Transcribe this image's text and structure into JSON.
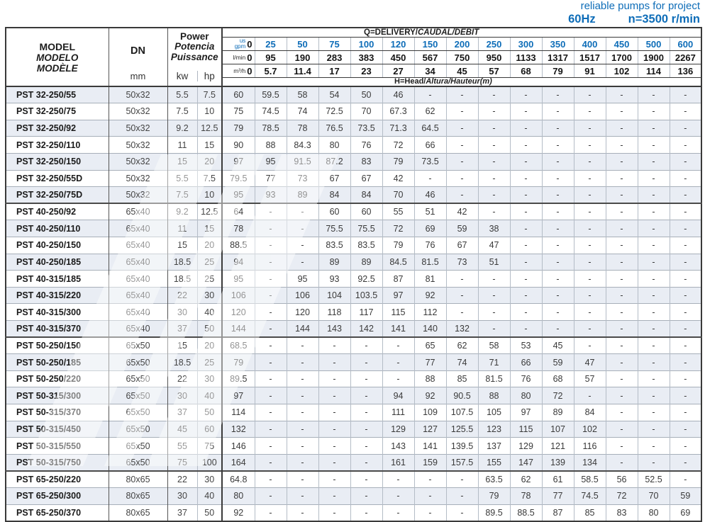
{
  "header": {
    "tagline": "reliable pumps for project",
    "frequency": "60Hz",
    "speed": "n=3500 r/min"
  },
  "table": {
    "model_header": {
      "en": "MODEL",
      "es": "MODELO",
      "fr": "MODÈLE"
    },
    "dn_header": {
      "label": "DN",
      "unit": "mm"
    },
    "power_header": {
      "en": "Power",
      "es": "Potencia",
      "fr": "Puissance",
      "units": [
        "kw",
        "hp"
      ]
    },
    "delivery_header": {
      "prefix": "Q=DELIVERY/",
      "italic": "CAUDAL/DÉBIT"
    },
    "head_label": {
      "prefix": "H=Head/",
      "italic": "Altura/Hauteur(m)"
    },
    "flow_rows": [
      {
        "unit": "us gpm",
        "values": [
          "0",
          "25",
          "50",
          "75",
          "100",
          "120",
          "150",
          "200",
          "250",
          "300",
          "350",
          "400",
          "450",
          "500",
          "600"
        ]
      },
      {
        "unit": "l/min",
        "values": [
          "0",
          "95",
          "190",
          "283",
          "383",
          "450",
          "567",
          "750",
          "950",
          "1133",
          "1317",
          "1517",
          "1700",
          "1900",
          "2267"
        ]
      },
      {
        "unit": "m³/h",
        "values": [
          "0",
          "5.7",
          "11.4",
          "17",
          "23",
          "27",
          "34",
          "45",
          "57",
          "68",
          "79",
          "91",
          "102",
          "114",
          "136"
        ]
      }
    ],
    "rows": [
      {
        "model": "PST 32-250/55",
        "dn": "50x32",
        "kw": "5.5",
        "hp": "7.5",
        "heads": [
          "60",
          "59.5",
          "58",
          "54",
          "50",
          "46",
          "-",
          "-",
          "-",
          "-",
          "-",
          "-",
          "-",
          "-",
          "-"
        ]
      },
      {
        "model": "PST 32-250/75",
        "dn": "50x32",
        "kw": "7.5",
        "hp": "10",
        "heads": [
          "75",
          "74.5",
          "74",
          "72.5",
          "70",
          "67.3",
          "62",
          "-",
          "-",
          "-",
          "-",
          "-",
          "-",
          "-",
          "-"
        ]
      },
      {
        "model": "PST 32-250/92",
        "dn": "50x32",
        "kw": "9.2",
        "hp": "12.5",
        "heads": [
          "79",
          "78.5",
          "78",
          "76.5",
          "73.5",
          "71.3",
          "64.5",
          "-",
          "-",
          "-",
          "-",
          "-",
          "-",
          "-",
          "-"
        ]
      },
      {
        "model": "PST 32-250/110",
        "dn": "50x32",
        "kw": "11",
        "hp": "15",
        "heads": [
          "90",
          "88",
          "84.3",
          "80",
          "76",
          "72",
          "66",
          "-",
          "-",
          "-",
          "-",
          "-",
          "-",
          "-",
          "-"
        ]
      },
      {
        "model": "PST 32-250/150",
        "dn": "50x32",
        "kw": "15",
        "hp": "20",
        "heads": [
          "97",
          "95",
          "91.5",
          "87.2",
          "83",
          "79",
          "73.5",
          "-",
          "-",
          "-",
          "-",
          "-",
          "-",
          "-",
          "-"
        ]
      },
      {
        "model": "PST 32-250/55D",
        "dn": "50x32",
        "kw": "5.5",
        "hp": "7.5",
        "heads": [
          "79.5",
          "77",
          "73",
          "67",
          "67",
          "42",
          "-",
          "-",
          "-",
          "-",
          "-",
          "-",
          "-",
          "-",
          "-"
        ]
      },
      {
        "model": "PST 32-250/75D",
        "dn": "50x32",
        "kw": "7.5",
        "hp": "10",
        "heads": [
          "95",
          "93",
          "89",
          "84",
          "84",
          "70",
          "46",
          "-",
          "-",
          "-",
          "-",
          "-",
          "-",
          "-",
          "-"
        ]
      },
      {
        "model": "PST 40-250/92",
        "dn": "65x40",
        "kw": "9.2",
        "hp": "12.5",
        "heads": [
          "64",
          "-",
          "-",
          "60",
          "60",
          "55",
          "51",
          "42",
          "-",
          "-",
          "-",
          "-",
          "-",
          "-",
          "-"
        ]
      },
      {
        "model": "PST 40-250/110",
        "dn": "65x40",
        "kw": "11",
        "hp": "15",
        "heads": [
          "78",
          "-",
          "-",
          "75.5",
          "75.5",
          "72",
          "69",
          "59",
          "38",
          "-",
          "-",
          "-",
          "-",
          "-",
          "-"
        ]
      },
      {
        "model": "PST 40-250/150",
        "dn": "65x40",
        "kw": "15",
        "hp": "20",
        "heads": [
          "88.5",
          "-",
          "-",
          "83.5",
          "83.5",
          "79",
          "76",
          "67",
          "47",
          "-",
          "-",
          "-",
          "-",
          "-",
          "-"
        ]
      },
      {
        "model": "PST 40-250/185",
        "dn": "65x40",
        "kw": "18.5",
        "hp": "25",
        "heads": [
          "94",
          "-",
          "-",
          "89",
          "89",
          "84.5",
          "81.5",
          "73",
          "51",
          "-",
          "-",
          "-",
          "-",
          "-",
          "-"
        ]
      },
      {
        "model": "PST 40-315/185",
        "dn": "65x40",
        "kw": "18.5",
        "hp": "25",
        "heads": [
          "95",
          "-",
          "95",
          "93",
          "92.5",
          "87",
          "81",
          "-",
          "-",
          "-",
          "-",
          "-",
          "-",
          "-",
          "-"
        ]
      },
      {
        "model": "PST 40-315/220",
        "dn": "65x40",
        "kw": "22",
        "hp": "30",
        "heads": [
          "106",
          "-",
          "106",
          "104",
          "103.5",
          "97",
          "92",
          "-",
          "-",
          "-",
          "-",
          "-",
          "-",
          "-",
          "-"
        ]
      },
      {
        "model": "PST 40-315/300",
        "dn": "65x40",
        "kw": "30",
        "hp": "40",
        "heads": [
          "120",
          "-",
          "120",
          "118",
          "117",
          "115",
          "112",
          "-",
          "-",
          "-",
          "-",
          "-",
          "-",
          "-",
          "-"
        ]
      },
      {
        "model": "PST 40-315/370",
        "dn": "65x40",
        "kw": "37",
        "hp": "50",
        "heads": [
          "144",
          "-",
          "144",
          "143",
          "142",
          "141",
          "140",
          "132",
          "-",
          "-",
          "-",
          "-",
          "-",
          "-",
          "-"
        ]
      },
      {
        "model": "PST 50-250/150",
        "dn": "65x50",
        "kw": "15",
        "hp": "20",
        "heads": [
          "68.5",
          "-",
          "-",
          "-",
          "-",
          "-",
          "65",
          "62",
          "58",
          "53",
          "45",
          "-",
          "-",
          "-",
          "-"
        ]
      },
      {
        "model": "PST 50-250/185",
        "dn": "65x50",
        "kw": "18.5",
        "hp": "25",
        "heads": [
          "79",
          "-",
          "-",
          "-",
          "-",
          "-",
          "77",
          "74",
          "71",
          "66",
          "59",
          "47",
          "-",
          "-",
          "-"
        ]
      },
      {
        "model": "PST 50-250/220",
        "dn": "65x50",
        "kw": "22",
        "hp": "30",
        "heads": [
          "89.5",
          "-",
          "-",
          "-",
          "-",
          "-",
          "88",
          "85",
          "81.5",
          "76",
          "68",
          "57",
          "-",
          "-",
          "-"
        ]
      },
      {
        "model": "PST 50-315/300",
        "dn": "65x50",
        "kw": "30",
        "hp": "40",
        "heads": [
          "97",
          "-",
          "-",
          "-",
          "-",
          "94",
          "92",
          "90.5",
          "88",
          "80",
          "72",
          "-",
          "-",
          "-",
          "-"
        ]
      },
      {
        "model": "PST 50-315/370",
        "dn": "65x50",
        "kw": "37",
        "hp": "50",
        "heads": [
          "114",
          "-",
          "-",
          "-",
          "-",
          "111",
          "109",
          "107.5",
          "105",
          "97",
          "89",
          "84",
          "-",
          "-",
          "-"
        ]
      },
      {
        "model": "PST 50-315/450",
        "dn": "65x50",
        "kw": "45",
        "hp": "60",
        "heads": [
          "132",
          "-",
          "-",
          "-",
          "-",
          "129",
          "127",
          "125.5",
          "123",
          "115",
          "107",
          "102",
          "-",
          "-",
          "-"
        ]
      },
      {
        "model": "PST 50-315/550",
        "dn": "65x50",
        "kw": "55",
        "hp": "75",
        "heads": [
          "146",
          "-",
          "-",
          "-",
          "-",
          "143",
          "141",
          "139.5",
          "137",
          "129",
          "121",
          "116",
          "-",
          "-",
          "-"
        ]
      },
      {
        "model": "PST 50-315/750",
        "dn": "65x50",
        "kw": "75",
        "hp": "100",
        "heads": [
          "164",
          "-",
          "-",
          "-",
          "-",
          "161",
          "159",
          "157.5",
          "155",
          "147",
          "139",
          "134",
          "-",
          "-",
          "-"
        ]
      },
      {
        "model": "PST 65-250/220",
        "dn": "80x65",
        "kw": "22",
        "hp": "30",
        "heads": [
          "64.8",
          "-",
          "-",
          "-",
          "-",
          "-",
          "-",
          "-",
          "63.5",
          "62",
          "61",
          "58.5",
          "56",
          "52.5",
          "-"
        ]
      },
      {
        "model": "PST 65-250/300",
        "dn": "80x65",
        "kw": "30",
        "hp": "40",
        "heads": [
          "80",
          "-",
          "-",
          "-",
          "-",
          "-",
          "-",
          "-",
          "79",
          "78",
          "77",
          "74.5",
          "72",
          "70",
          "59"
        ]
      },
      {
        "model": "PST 65-250/370",
        "dn": "80x65",
        "kw": "37",
        "hp": "50",
        "heads": [
          "92",
          "-",
          "-",
          "-",
          "-",
          "-",
          "-",
          "-",
          "89.5",
          "88.5",
          "87",
          "85",
          "83",
          "80",
          "69"
        ]
      }
    ],
    "colors": {
      "accent_blue": "#0e6db8",
      "row_shade": "#e9edf4"
    }
  }
}
